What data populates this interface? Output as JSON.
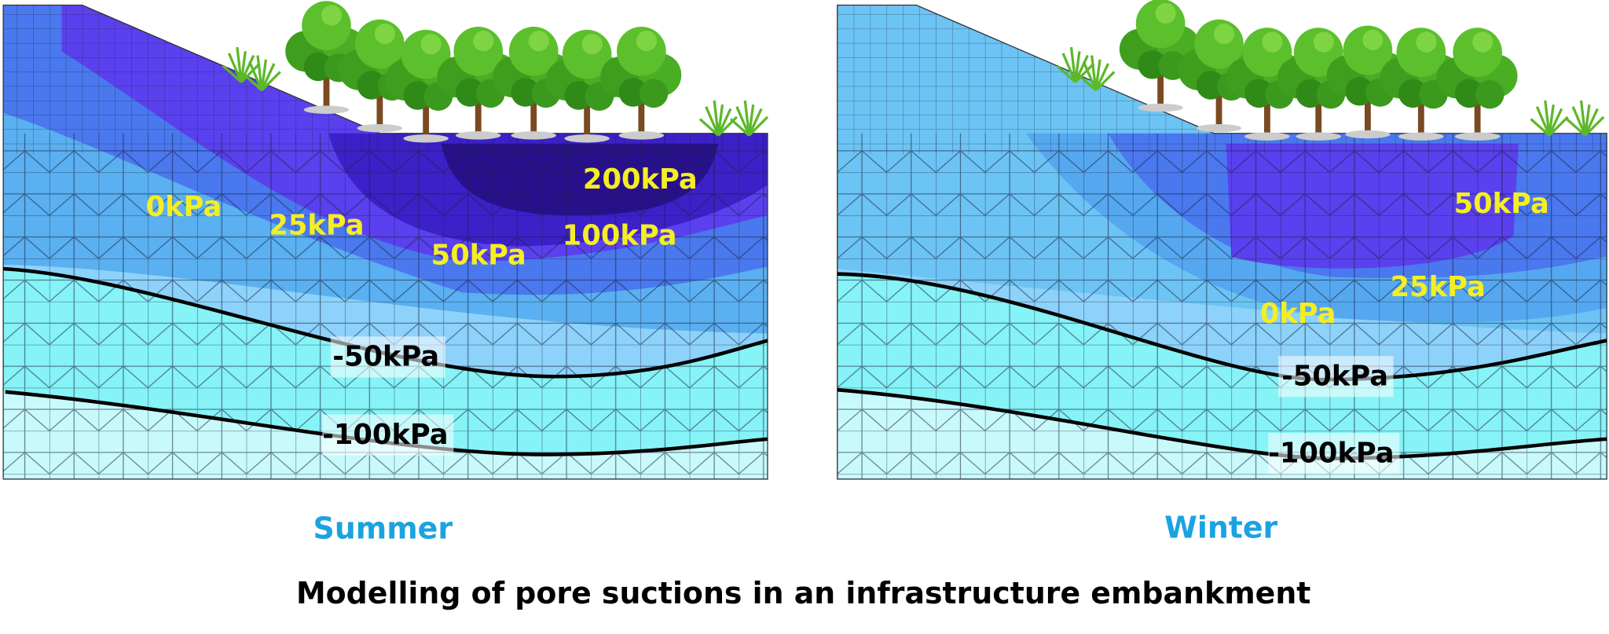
{
  "panels": [
    {
      "caption": "Summer",
      "labels": [
        "0kPa",
        "25kPa",
        "50kPa",
        "100kPa",
        "200kPa",
        "-50kPa",
        "-100kPa"
      ]
    },
    {
      "caption": "Winter",
      "labels": [
        "50kPa",
        "25kPa",
        "0kPa",
        "-50kPa",
        "-100kPa"
      ]
    }
  ],
  "title": "Modelling of pore suctions in an infrastructure embankment"
}
